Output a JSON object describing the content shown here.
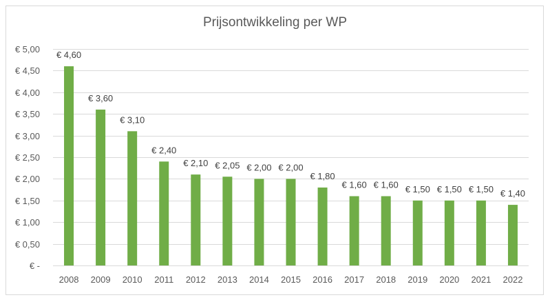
{
  "chart_data": {
    "type": "bar",
    "title": "Prijsontwikkeling per WP",
    "categories": [
      "2008",
      "2009",
      "2010",
      "2011",
      "2012",
      "2013",
      "2014",
      "2015",
      "2016",
      "2017",
      "2018",
      "2019",
      "2020",
      "2021",
      "2022"
    ],
    "values": [
      4.6,
      3.6,
      3.1,
      2.4,
      2.1,
      2.05,
      2.0,
      2.0,
      1.8,
      1.6,
      1.6,
      1.5,
      1.5,
      1.5,
      1.4
    ],
    "data_labels": [
      "€ 4,60",
      "€ 3,60",
      "€ 3,10",
      "€ 2,40",
      "€ 2,10",
      "€ 2,05",
      "€ 2,00",
      "€ 2,00",
      "€ 1,80",
      "€ 1,60",
      "€ 1,60",
      "€ 1,50",
      "€ 1,50",
      "€ 1,50",
      "€ 1,40"
    ],
    "y_ticks": [
      0,
      0.5,
      1,
      1.5,
      2,
      2.5,
      3,
      3.5,
      4,
      4.5,
      5
    ],
    "y_tick_labels": [
      "€ -",
      "€ 0,50",
      "€ 1,00",
      "€ 1,50",
      "€ 2,00",
      "€ 2,50",
      "€ 3,00",
      "€ 3,50",
      "€ 4,00",
      "€ 4,50",
      "€ 5,00"
    ],
    "ylim": [
      0,
      5
    ],
    "xlabel": "",
    "ylabel": "",
    "grid": true,
    "legend": "none",
    "bar_color": "#70ad47"
  }
}
